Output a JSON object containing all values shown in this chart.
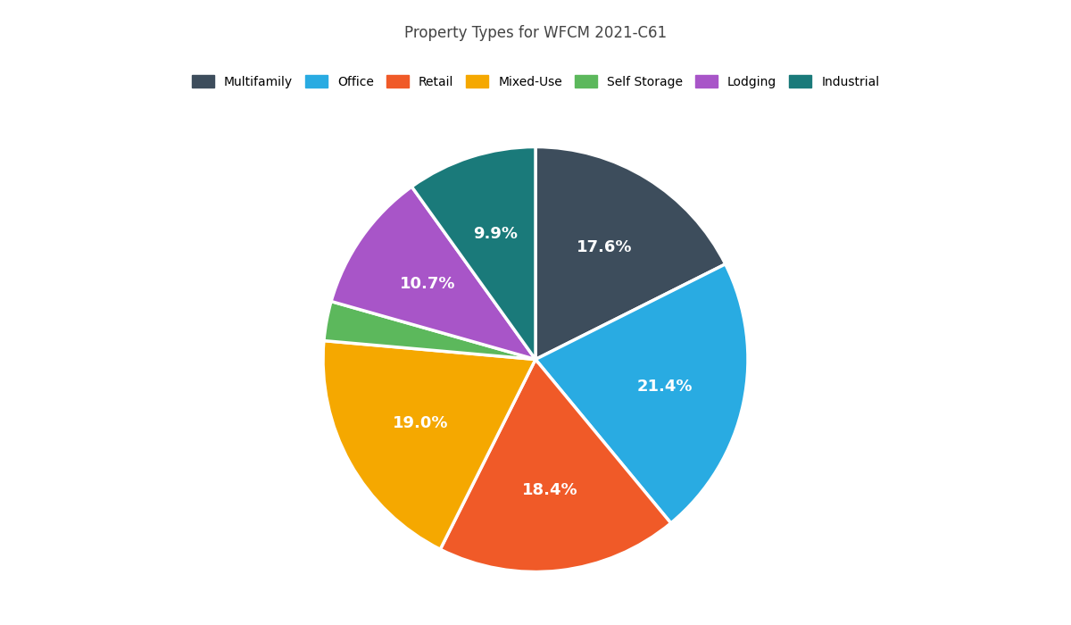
{
  "title": "Property Types for WFCM 2021-C61",
  "labels": [
    "Multifamily",
    "Office",
    "Retail",
    "Mixed-Use",
    "Self Storage",
    "Lodging",
    "Industrial"
  ],
  "values": [
    17.6,
    21.4,
    18.4,
    19.0,
    2.0,
    10.7,
    9.9
  ],
  "colors": [
    "#3d4d5c",
    "#29abe2",
    "#f05a28",
    "#f5a800",
    "#5cb85c",
    "#a855c8",
    "#1a7a7a"
  ],
  "pct_labels": [
    "17.6%",
    "21.4%",
    "18.4%",
    "19.0%",
    "",
    "10.7%",
    "9.9%"
  ],
  "startangle": 90,
  "background_color": "#ffffff",
  "title_fontsize": 12,
  "legend_fontsize": 10,
  "pct_fontsize": 13,
  "figsize": [
    12,
    7
  ],
  "dpi": 100
}
